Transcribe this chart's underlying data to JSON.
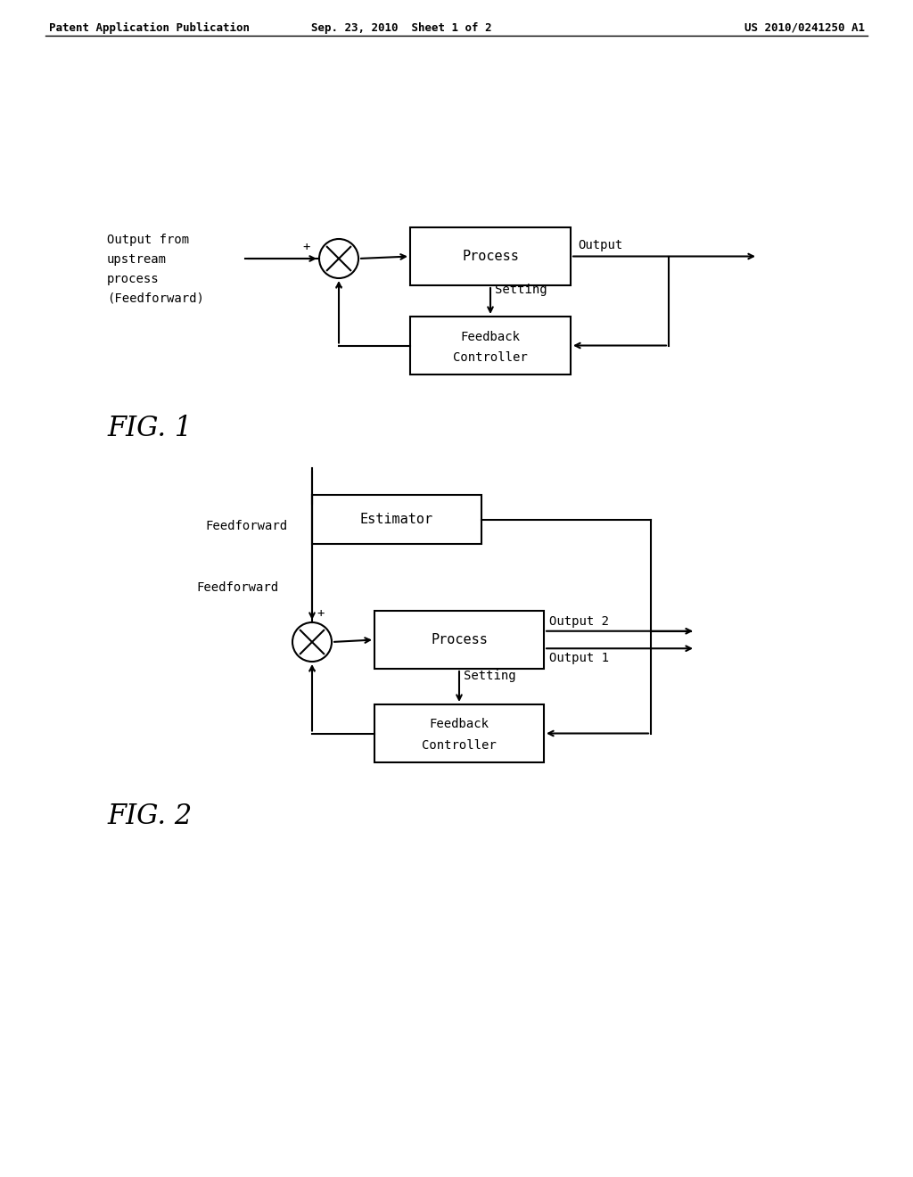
{
  "header_left": "Patent Application Publication",
  "header_mid": "Sep. 23, 2010  Sheet 1 of 2",
  "header_right": "US 2010/0241250 A1",
  "fig1_label": "FIG. 1",
  "fig2_label": "FIG. 2",
  "fig1_upstream_text": [
    "Output from",
    "upstream",
    "process",
    "(Feedforward)"
  ],
  "fig1_process_label": "Process",
  "fig1_feedback_label": [
    "Feedback",
    "Controller"
  ],
  "fig1_setting_label": "Setting",
  "fig1_output_label": "Output",
  "fig2_feedforward_label": "Feedforward",
  "fig2_estimator_label": "Estimator",
  "fig2_process_label": "Process",
  "fig2_feedback_label": [
    "Feedback",
    "Controller"
  ],
  "fig2_setting_label": "Setting",
  "fig2_output2_label": "Output 2",
  "fig2_output1_label": "Output 1",
  "bg_color": "#ffffff",
  "line_color": "#000000"
}
